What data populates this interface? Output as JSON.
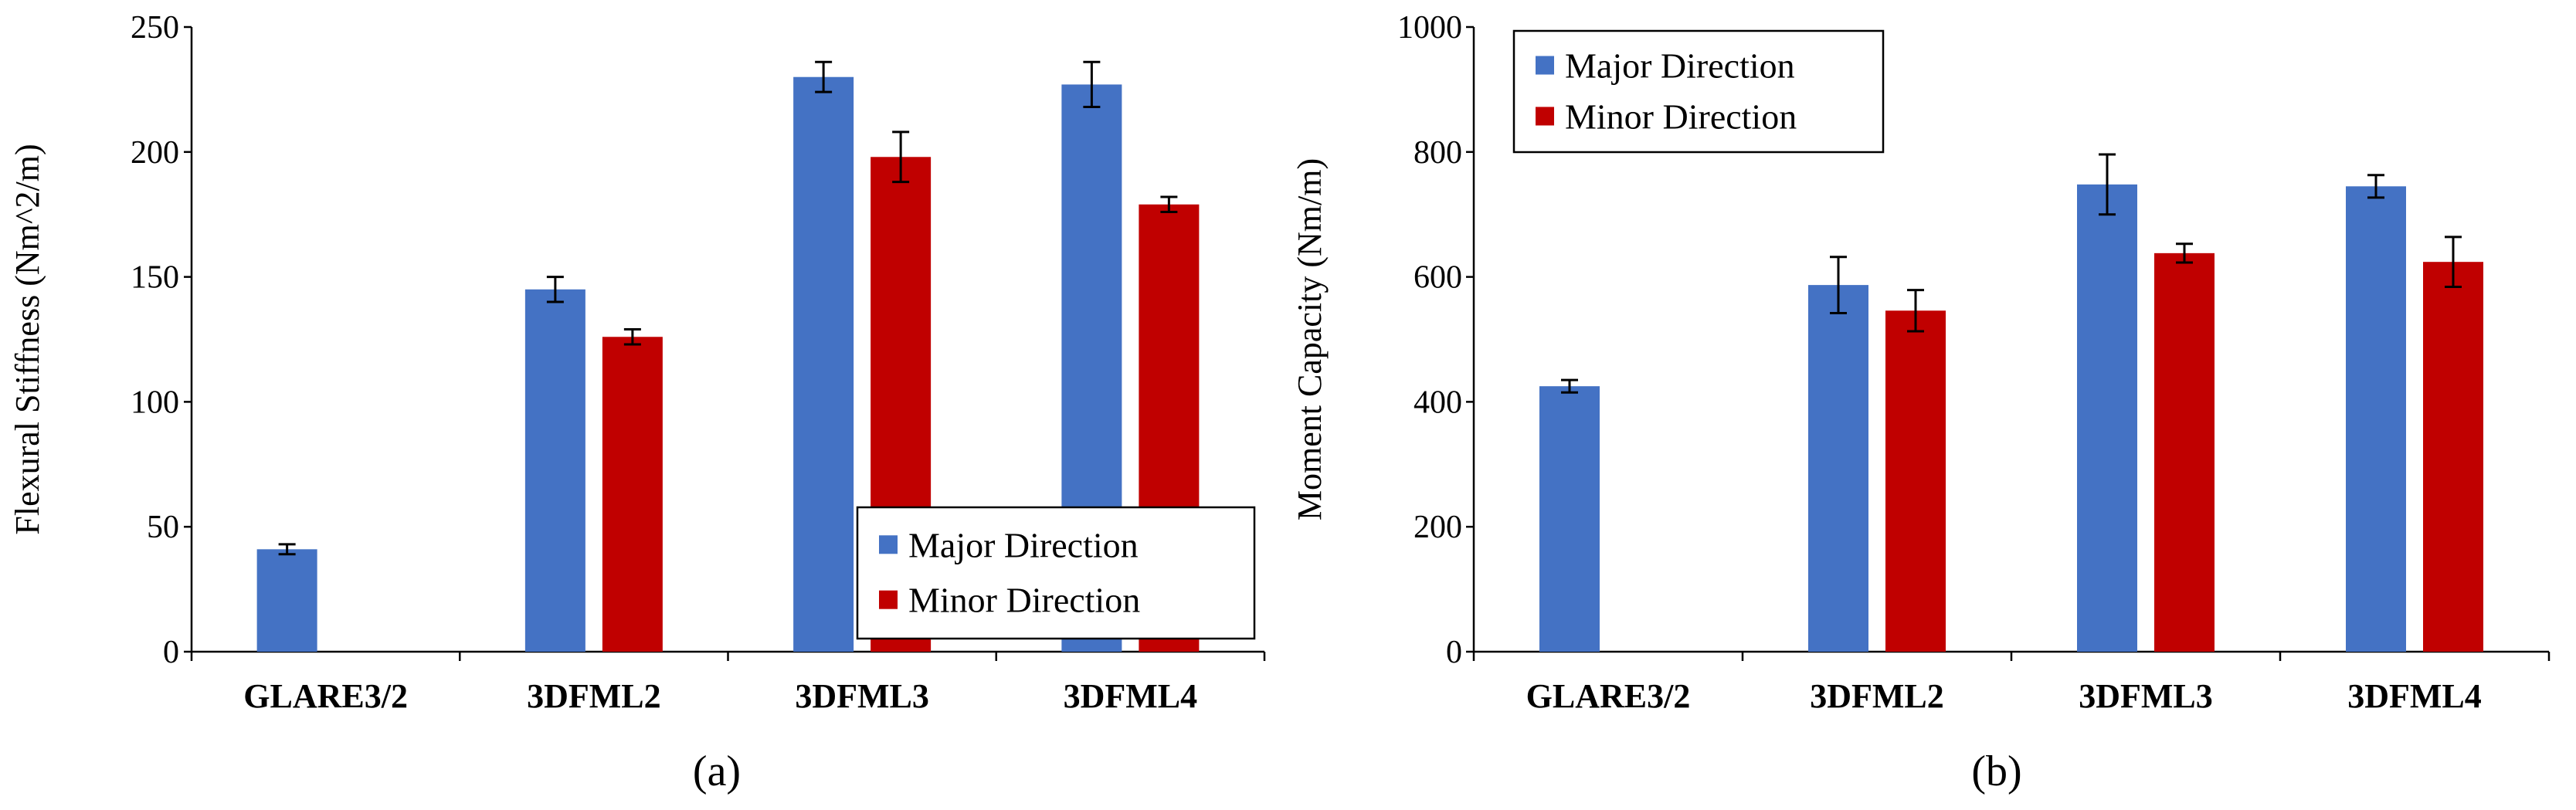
{
  "colors": {
    "major": "#4472C4",
    "minor": "#C00000"
  },
  "chart_data": [
    {
      "type": "bar",
      "panel": "(a)",
      "title": "",
      "xlabel": "",
      "ylabel": "Flexural Stiffness (Nm^2/m)",
      "ylim": [
        0,
        250
      ],
      "yticks": [
        0,
        50,
        100,
        150,
        200,
        250
      ],
      "grid": false,
      "legend_position": "bottom-right",
      "categories": [
        "GLARE3/2",
        "3DFML2",
        "3DFML3",
        "3DFML4"
      ],
      "series": [
        {
          "name": "Major Direction",
          "values": [
            41,
            145,
            230,
            227
          ],
          "errors": [
            2,
            5,
            6,
            9
          ]
        },
        {
          "name": "Minor Direction",
          "values": [
            null,
            126,
            198,
            179
          ],
          "errors": [
            null,
            3,
            10,
            3
          ]
        }
      ]
    },
    {
      "type": "bar",
      "panel": "(b)",
      "title": "",
      "xlabel": "",
      "ylabel": "Moment Capacity (Nm/m)",
      "ylim": [
        0,
        1000
      ],
      "yticks": [
        0,
        200,
        400,
        600,
        800,
        1000
      ],
      "grid": false,
      "legend_position": "top-left",
      "categories": [
        "GLARE3/2",
        "3DFML2",
        "3DFML3",
        "3DFML4"
      ],
      "series": [
        {
          "name": "Major Direction",
          "values": [
            425,
            587,
            748,
            745
          ],
          "errors": [
            10,
            45,
            48,
            18
          ]
        },
        {
          "name": "Minor Direction",
          "values": [
            null,
            546,
            638,
            624
          ],
          "errors": [
            null,
            33,
            15,
            40
          ]
        }
      ]
    }
  ]
}
